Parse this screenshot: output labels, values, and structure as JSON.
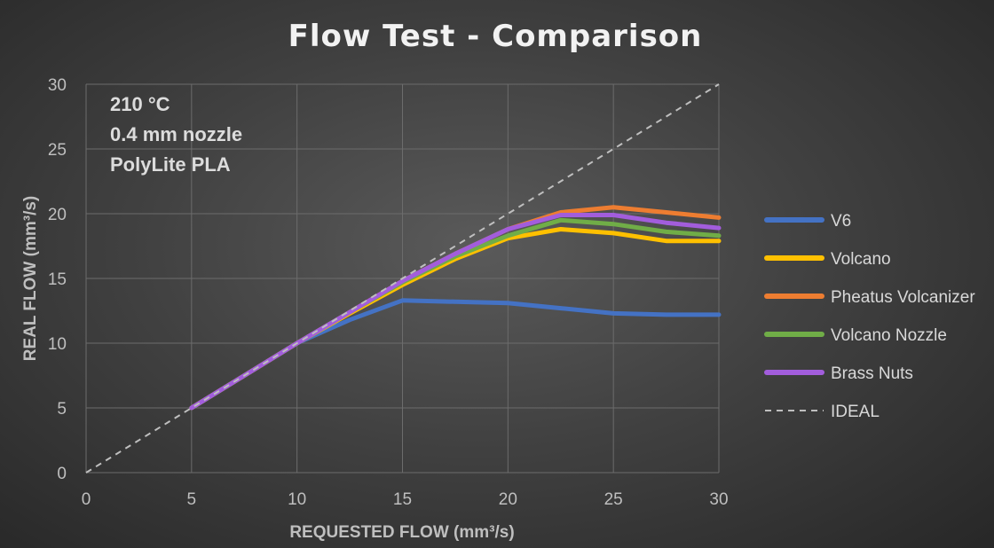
{
  "chart_data": {
    "type": "line",
    "title": "Flow Test - Comparison",
    "xlabel": "REQUESTED FLOW (mm³/s)",
    "ylabel": "REAL FLOW (mm³/s)",
    "xlim": [
      0,
      30
    ],
    "ylim": [
      0,
      30
    ],
    "x_ticks": [
      "0",
      "5",
      "10",
      "15",
      "20",
      "25",
      "30"
    ],
    "y_ticks": [
      "0",
      "5",
      "10",
      "15",
      "20",
      "25",
      "30"
    ],
    "grid": true,
    "legend_position": "right",
    "annotations": [
      "210 °C",
      "0.4 mm nozzle",
      "PolyLite PLA"
    ],
    "series": [
      {
        "name": "V6",
        "color": "#4472C4",
        "style": "solid",
        "points": [
          [
            5,
            5
          ],
          [
            7.5,
            7.5
          ],
          [
            10,
            10
          ],
          [
            12.5,
            11.8
          ],
          [
            15,
            13.3
          ],
          [
            17.5,
            13.2
          ],
          [
            20,
            13.1
          ],
          [
            22.5,
            12.7
          ],
          [
            25,
            12.3
          ],
          [
            27.5,
            12.2
          ],
          [
            30,
            12.2
          ]
        ]
      },
      {
        "name": "Volcano",
        "color": "#FFC000",
        "style": "solid",
        "points": [
          [
            5,
            5
          ],
          [
            7.5,
            7.5
          ],
          [
            10,
            10
          ],
          [
            12.5,
            12.3
          ],
          [
            15,
            14.5
          ],
          [
            17.5,
            16.5
          ],
          [
            20,
            18.1
          ],
          [
            22.5,
            18.8
          ],
          [
            25,
            18.5
          ],
          [
            27.5,
            17.9
          ],
          [
            30,
            17.9
          ]
        ]
      },
      {
        "name": "Pheatus Volcanizer",
        "color": "#ED7D31",
        "style": "solid",
        "points": [
          [
            5,
            5
          ],
          [
            7.5,
            7.5
          ],
          [
            10,
            10
          ],
          [
            12.5,
            12.4
          ],
          [
            15,
            14.8
          ],
          [
            17.5,
            16.9
          ],
          [
            20,
            18.8
          ],
          [
            22.5,
            20.1
          ],
          [
            25,
            20.5
          ],
          [
            27.5,
            20.1
          ],
          [
            30,
            19.7
          ]
        ]
      },
      {
        "name": "Volcano Nozzle",
        "color": "#70AD47",
        "style": "solid",
        "points": [
          [
            5,
            5
          ],
          [
            7.5,
            7.5
          ],
          [
            10,
            10
          ],
          [
            12.5,
            12.4
          ],
          [
            15,
            14.7
          ],
          [
            17.5,
            16.7
          ],
          [
            20,
            18.3
          ],
          [
            22.5,
            19.5
          ],
          [
            25,
            19.2
          ],
          [
            27.5,
            18.6
          ],
          [
            30,
            18.3
          ]
        ]
      },
      {
        "name": "Brass Nuts",
        "color": "#A25DDC",
        "style": "solid",
        "points": [
          [
            5,
            5
          ],
          [
            7.5,
            7.5
          ],
          [
            10,
            10
          ],
          [
            12.5,
            12.4
          ],
          [
            15,
            14.8
          ],
          [
            17.5,
            16.9
          ],
          [
            20,
            18.8
          ],
          [
            22.5,
            19.9
          ],
          [
            25,
            19.9
          ],
          [
            27.5,
            19.3
          ],
          [
            30,
            18.9
          ]
        ]
      },
      {
        "name": "IDEAL",
        "color": "#bfbfbf",
        "style": "dashed",
        "points": [
          [
            0,
            0
          ],
          [
            30,
            30
          ]
        ]
      }
    ]
  }
}
